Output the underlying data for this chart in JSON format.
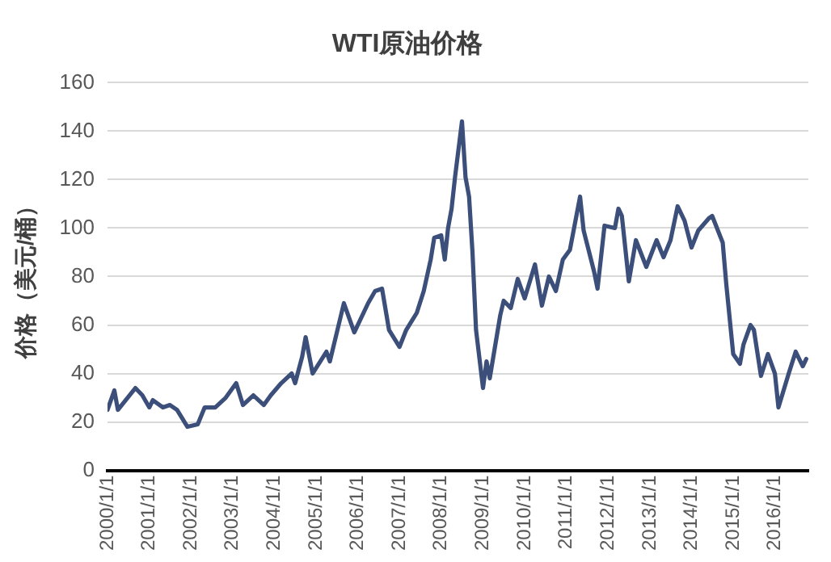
{
  "chart_data": {
    "type": "line",
    "title": "WTI原油价格",
    "ylabel": "价格（美元/桶）",
    "x": [
      "2000-01",
      "2000-03",
      "2000-04",
      "2000-09",
      "2000-11",
      "2001-01",
      "2001-02",
      "2001-05",
      "2001-07",
      "2001-09",
      "2001-12",
      "2002-03",
      "2002-05",
      "2002-08",
      "2002-11",
      "2003-02",
      "2003-04",
      "2003-07",
      "2003-10",
      "2003-12",
      "2004-03",
      "2004-06",
      "2004-07",
      "2004-09",
      "2004-10",
      "2004-12",
      "2005-04",
      "2005-05",
      "2005-09",
      "2005-12",
      "2006-04",
      "2006-06",
      "2006-08",
      "2006-10",
      "2007-01",
      "2007-03",
      "2007-06",
      "2007-08",
      "2007-10",
      "2007-11",
      "2008-01",
      "2008-02",
      "2008-03",
      "2008-04",
      "2008-05",
      "2008-07",
      "2008-08",
      "2008-09",
      "2008-10",
      "2008-11",
      "2009-01",
      "2009-02",
      "2009-03",
      "2009-06",
      "2009-07",
      "2009-09",
      "2009-11",
      "2010-01",
      "2010-04",
      "2010-06",
      "2010-08",
      "2010-10",
      "2010-12",
      "2011-02",
      "2011-05",
      "2011-06",
      "2011-09",
      "2011-10",
      "2011-12",
      "2012-03",
      "2012-04",
      "2012-05",
      "2012-07",
      "2012-09",
      "2012-12",
      "2013-03",
      "2013-05",
      "2013-07",
      "2013-09",
      "2013-11",
      "2014-01",
      "2014-03",
      "2014-06",
      "2014-07",
      "2014-10",
      "2014-11",
      "2015-01",
      "2015-03",
      "2015-04",
      "2015-06",
      "2015-07",
      "2015-09",
      "2015-11",
      "2016-01",
      "2016-02",
      "2016-05",
      "2016-07",
      "2016-09",
      "2016-10"
    ],
    "series": [
      {
        "color": "#3b4f7a",
        "values": [
          25,
          33,
          25,
          34,
          31,
          26,
          29,
          26,
          27,
          25,
          18,
          19,
          26,
          26,
          30,
          36,
          27,
          31,
          27,
          31,
          36,
          40,
          36,
          47,
          55,
          40,
          49,
          45,
          69,
          57,
          69,
          74,
          75,
          58,
          51,
          58,
          65,
          74,
          87,
          96,
          97,
          87,
          100,
          108,
          121,
          144,
          121,
          113,
          90,
          58,
          34,
          45,
          38,
          64,
          70,
          67,
          79,
          71,
          85,
          68,
          80,
          74,
          87,
          91,
          113,
          99,
          82,
          75,
          101,
          100,
          108,
          105,
          78,
          95,
          84,
          95,
          88,
          95,
          109,
          103,
          92,
          99,
          104,
          105,
          94,
          77,
          48,
          44,
          52,
          60,
          58,
          39,
          48,
          40,
          26,
          40,
          49,
          43,
          46
        ]
      }
    ],
    "xlim": [
      "2000-01-01",
      "2016-10-20"
    ],
    "xticks": [
      {
        "value": "2000-01-01",
        "label": "2000/1/1"
      },
      {
        "value": "2001-01-01",
        "label": "2001/1/1"
      },
      {
        "value": "2002-01-01",
        "label": "2002/1/1"
      },
      {
        "value": "2003-01-01",
        "label": "2003/1/1"
      },
      {
        "value": "2004-01-01",
        "label": "2004/1/1"
      },
      {
        "value": "2005-01-01",
        "label": "2005/1/1"
      },
      {
        "value": "2006-01-01",
        "label": "2006/1/1"
      },
      {
        "value": "2007-01-01",
        "label": "2007/1/1"
      },
      {
        "value": "2008-01-01",
        "label": "2008/1/1"
      },
      {
        "value": "2009-01-01",
        "label": "2009/1/1"
      },
      {
        "value": "2010-01-01",
        "label": "2010/1/1"
      },
      {
        "value": "2011-01-01",
        "label": "2011/1/1"
      },
      {
        "value": "2012-01-01",
        "label": "2012/1/1"
      },
      {
        "value": "2013-01-01",
        "label": "2013/1/1"
      },
      {
        "value": "2014-01-01",
        "label": "2014/1/1"
      },
      {
        "value": "2015-01-01",
        "label": "2015/1/1"
      },
      {
        "value": "2016-01-01",
        "label": "2016/1/1"
      }
    ],
    "ylim": [
      0,
      160
    ],
    "yticks": [
      0,
      20,
      40,
      60,
      80,
      100,
      120,
      140,
      160
    ],
    "grid": "y",
    "legend": false,
    "marker": "none",
    "line_style": "solid"
  }
}
